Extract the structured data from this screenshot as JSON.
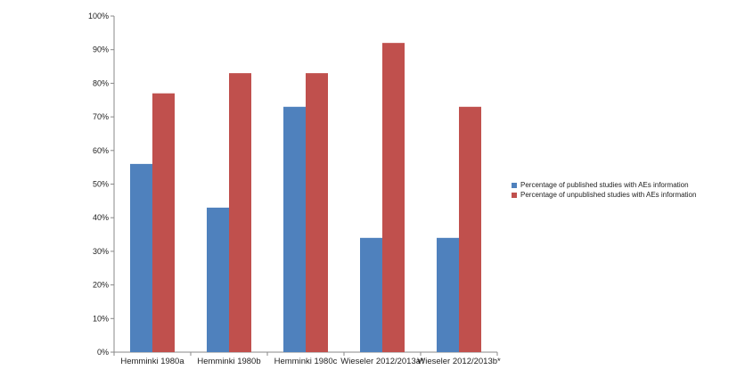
{
  "chart_data": {
    "type": "bar",
    "categories": [
      "Hemminki 1980a",
      "Hemminki 1980b",
      "Hemminki 1980c",
      "Wieseler 2012/2013a*",
      "Wieseler 2012/2013b*"
    ],
    "series": [
      {
        "name": "Percentage of published studies with AEs information",
        "values": [
          56,
          43,
          73,
          34,
          34
        ],
        "color": "#4f81bd"
      },
      {
        "name": "Percentage of unpublished studies with AEs information",
        "values": [
          77,
          83,
          83,
          92,
          73
        ],
        "color": "#c0504d"
      }
    ],
    "ylim": [
      0,
      100
    ],
    "yticks": [
      "0%",
      "10%",
      "20%",
      "30%",
      "40%",
      "50%",
      "60%",
      "70%",
      "80%",
      "90%",
      "100%"
    ],
    "grid": false,
    "legend_position": "right"
  }
}
